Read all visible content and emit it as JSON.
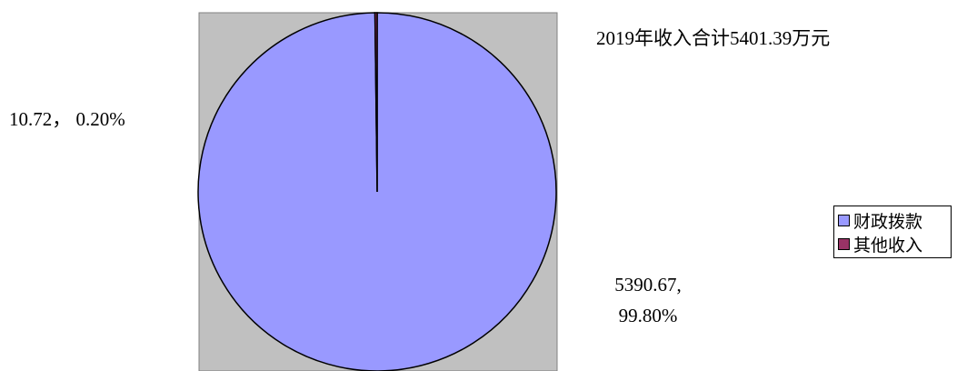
{
  "chart_data": {
    "type": "pie",
    "title": "2019年收入合计5401.39万元",
    "categories": [
      "财政拨款",
      "其他收入"
    ],
    "values": [
      5390.67,
      10.72
    ],
    "value_labels": [
      "5390.67, 99.80%",
      "10.72， 0.20%"
    ],
    "colors": [
      "#9999ff",
      "#993366"
    ],
    "legend": "right"
  }
}
